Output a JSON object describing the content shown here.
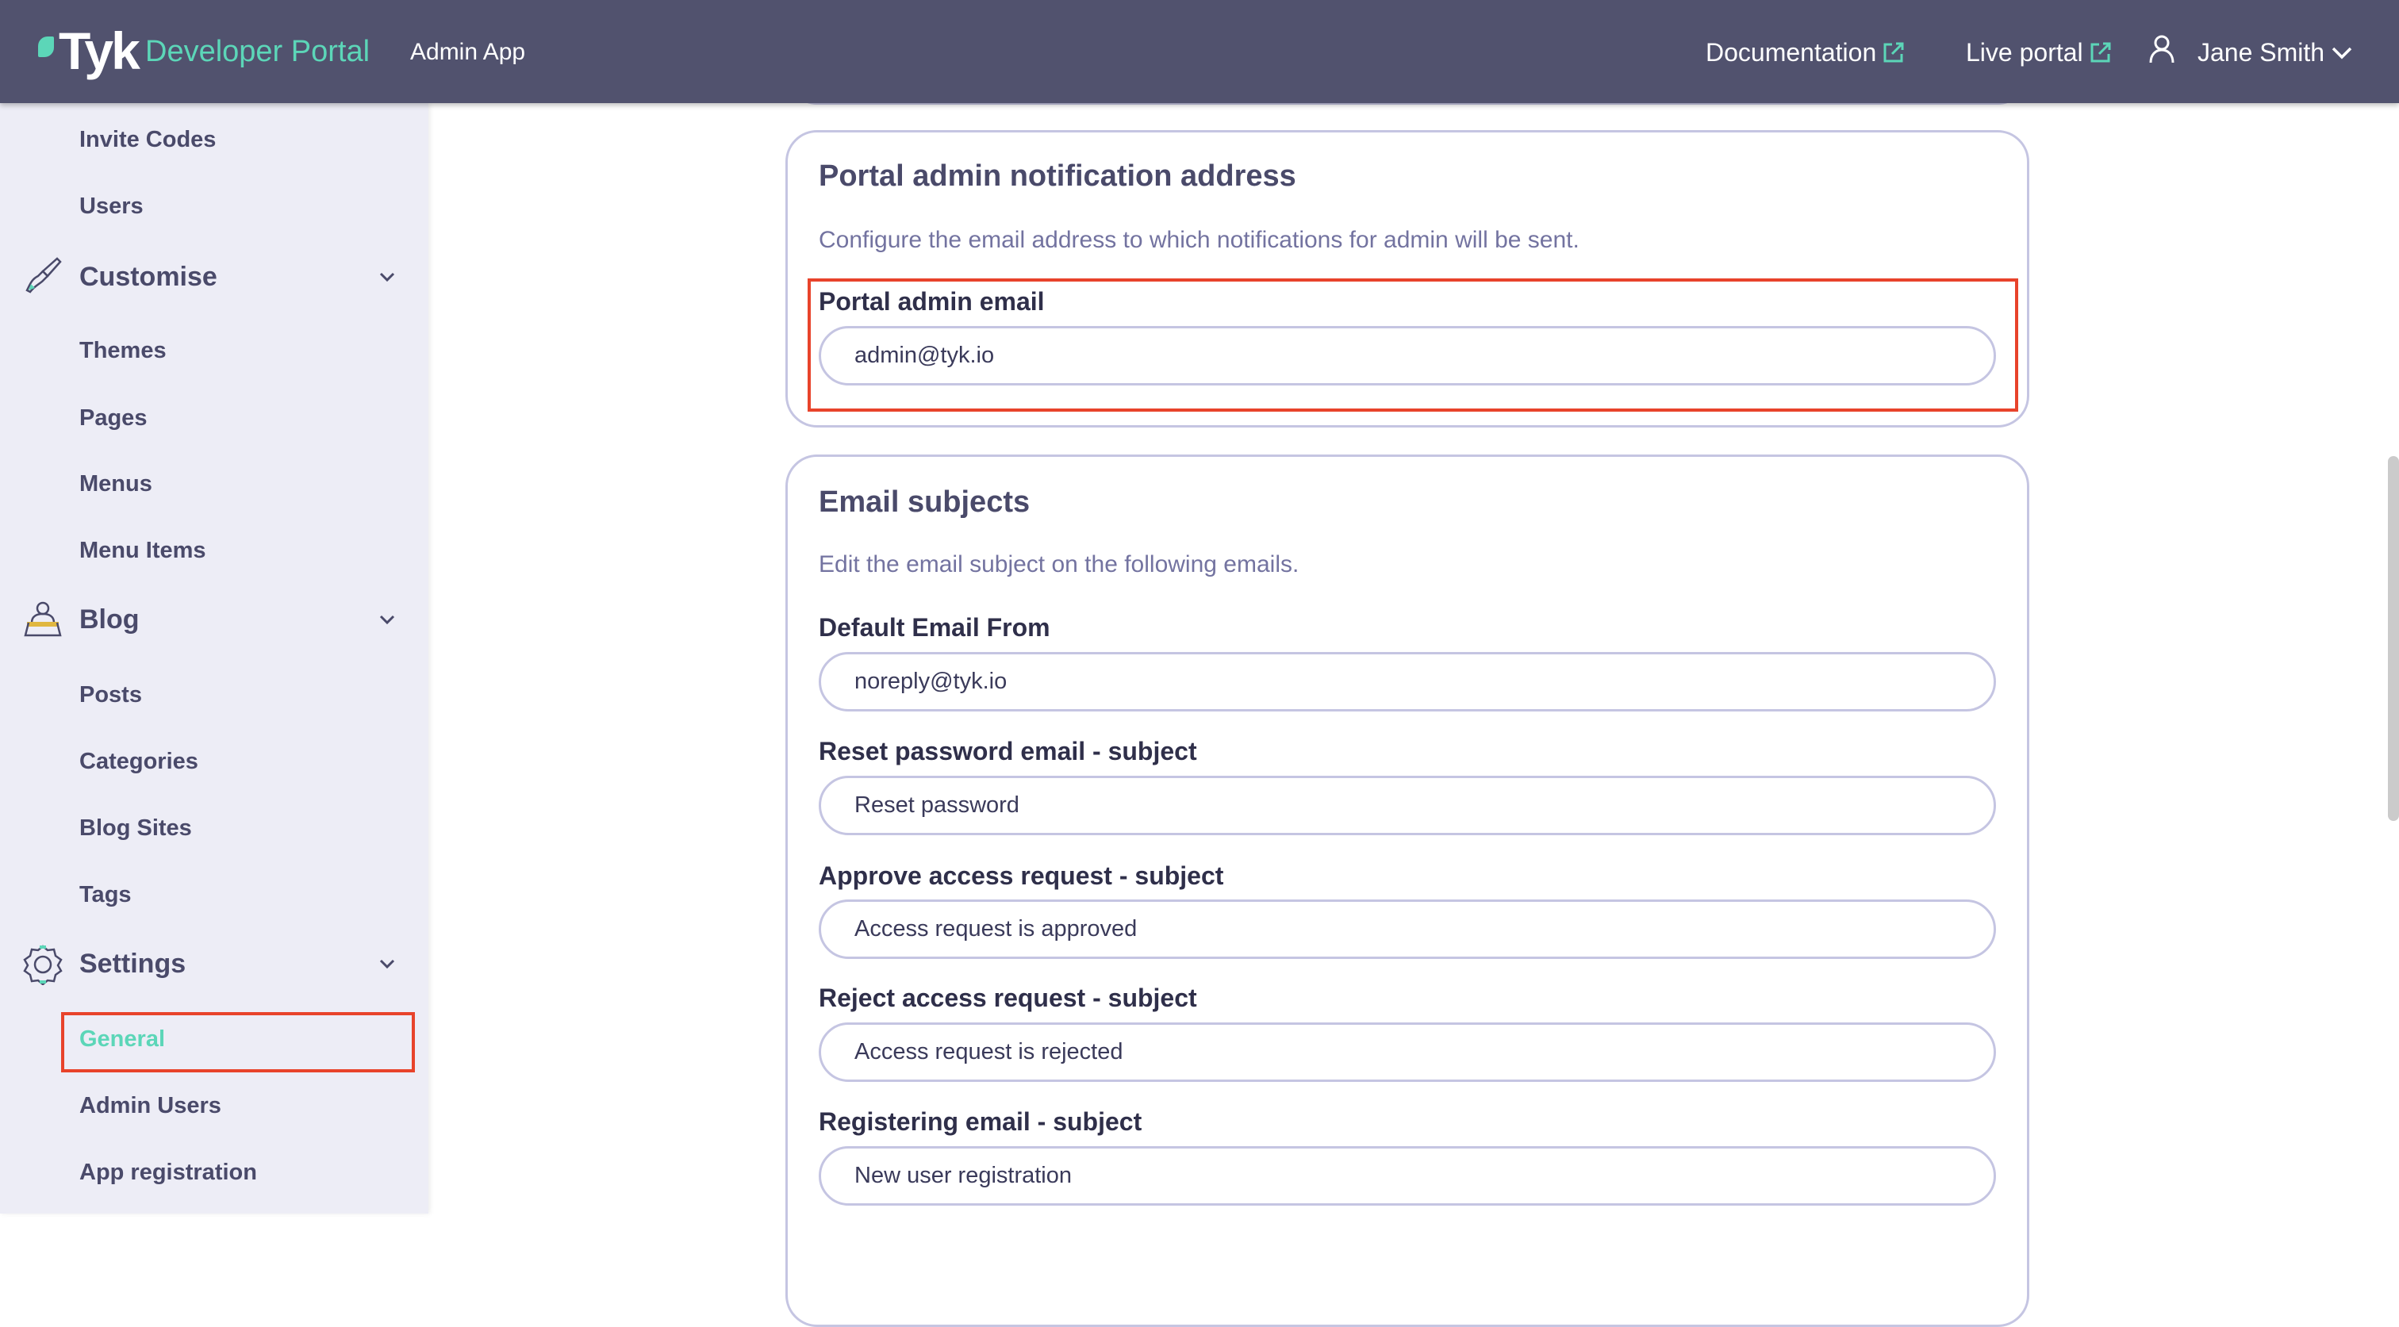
{
  "header": {
    "logo_text": "Tyk",
    "brand": "Developer Portal",
    "app_name": "Admin App",
    "documentation": "Documentation",
    "live_portal": "Live portal",
    "user_name": "Jane Smith",
    "colors": {
      "bar": "#51526e",
      "accent": "#5cd6b8"
    }
  },
  "sidebar": {
    "items": [
      {
        "label": "Invite Codes"
      },
      {
        "label": "Users"
      }
    ],
    "sections": [
      {
        "label": "Customise",
        "icon": "paintbrush-icon",
        "items": [
          "Themes",
          "Pages",
          "Menus",
          "Menu Items"
        ]
      },
      {
        "label": "Blog",
        "icon": "blogger-icon",
        "items": [
          "Posts",
          "Categories",
          "Blog Sites",
          "Tags"
        ]
      },
      {
        "label": "Settings",
        "icon": "gear-icon",
        "items": [
          "General",
          "Admin Users",
          "App registration"
        ]
      }
    ],
    "active_item": "General"
  },
  "notification_card": {
    "title": "Portal admin notification address",
    "description": "Configure the email address to which notifications for admin will be sent.",
    "field": {
      "label": "Portal admin email",
      "value": "admin@tyk.io"
    }
  },
  "subjects_card": {
    "title": "Email subjects",
    "description": "Edit the email subject on the following emails.",
    "fields": [
      {
        "label": "Default Email From",
        "value": "noreply@tyk.io"
      },
      {
        "label": "Reset password email - subject",
        "value": "Reset password"
      },
      {
        "label": "Approve access request - subject",
        "value": "Access request is approved"
      },
      {
        "label": "Reject access request - subject",
        "value": "Access request is rejected"
      },
      {
        "label": "Registering email - subject",
        "value": "New user registration"
      }
    ]
  }
}
